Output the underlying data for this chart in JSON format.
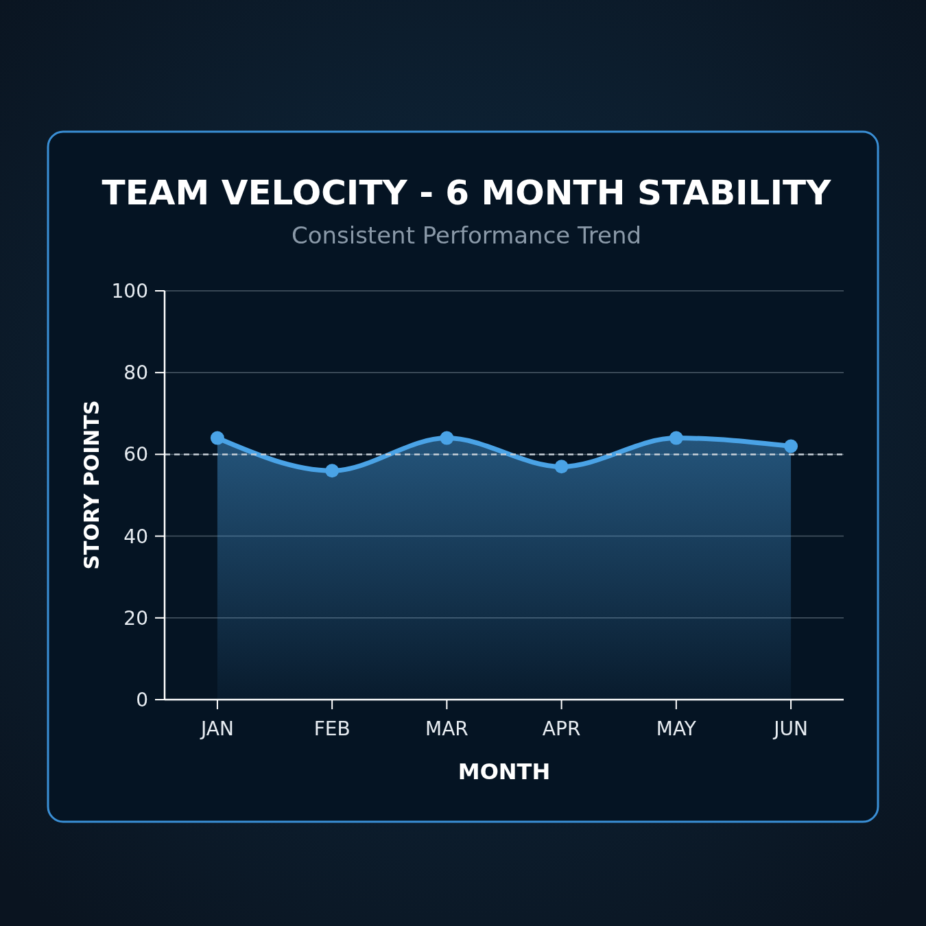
{
  "chart_data": {
    "type": "area",
    "title": "TEAM VELOCITY - 6 MONTH STABILITY",
    "subtitle": "Consistent Performance Trend",
    "xlabel": "MONTH",
    "ylabel": "STORY POINTS",
    "categories": [
      "JAN",
      "FEB",
      "MAR",
      "APR",
      "MAY",
      "JUN"
    ],
    "series": [
      {
        "color": "#4aa3e6",
        "values": [
          64,
          56,
          64,
          57,
          64,
          62
        ]
      }
    ],
    "ylim": [
      0,
      100
    ],
    "yticks": [
      0,
      20,
      40,
      60,
      80,
      100
    ],
    "grid": "y",
    "marker": "circle",
    "line_style": "solid",
    "ref_lines": [
      {
        "axis": "y",
        "value": 60,
        "color": "#c8d0d8",
        "line_style": "dashed"
      }
    ]
  }
}
